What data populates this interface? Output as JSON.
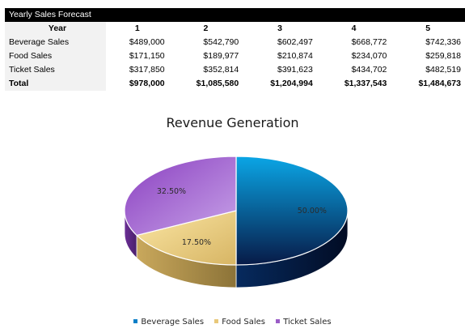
{
  "table": {
    "title": "Yearly Sales Forecast",
    "header_label": "Year",
    "years": [
      "1",
      "2",
      "3",
      "4",
      "5"
    ],
    "rows": [
      {
        "label": "Beverage Sales",
        "values": [
          "$489,000",
          "$542,790",
          "$602,497",
          "$668,772",
          "$742,336"
        ]
      },
      {
        "label": "Food Sales",
        "values": [
          "$171,150",
          "$189,977",
          "$210,874",
          "$234,070",
          "$259,818"
        ]
      },
      {
        "label": "Ticket Sales",
        "values": [
          "$317,850",
          "$352,814",
          "$391,623",
          "$434,702",
          "$482,519"
        ]
      }
    ],
    "total": {
      "label": "Total",
      "values": [
        "$978,000",
        "$1,085,580",
        "$1,204,994",
        "$1,337,543",
        "$1,484,673"
      ]
    }
  },
  "chart_data": {
    "type": "pie",
    "title": "Revenue Generation",
    "categories": [
      "Beverage Sales",
      "Food Sales",
      "Ticket Sales"
    ],
    "values": [
      50.0,
      17.5,
      32.5
    ],
    "data_labels": [
      "50.00%",
      "17.50%",
      "32.50%"
    ],
    "colors": [
      "#0b7fc7",
      "#e8c87a",
      "#9a5cc6"
    ],
    "legend_position": "bottom",
    "style": "3d-exploded-none"
  }
}
